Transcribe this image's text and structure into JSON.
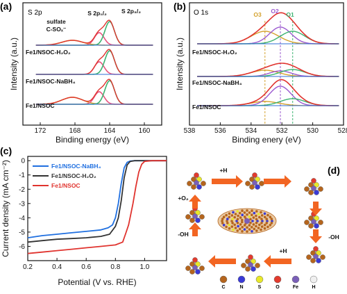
{
  "chart_data": [
    {
      "panel": "(a)",
      "type": "line",
      "title": "S 2p",
      "xlabel": "Binding energy (eV)",
      "ylabel": "Intensity (a.u.)",
      "xlim": [
        174,
        158
      ],
      "xticks": [
        172,
        168,
        164,
        160
      ],
      "annotations": [
        "sulfate",
        "C-SOₓ⁻",
        "S 2p₁/₂",
        "S 2p₃/₂"
      ],
      "series": [
        {
          "name": "Fe1/NSOC-H₂O₂",
          "peaks_eV": [
            168.3,
            165.2,
            164.0
          ]
        },
        {
          "name": "Fe1/NSOC-NaBH₄",
          "peaks_eV": [
            165.2,
            164.0
          ]
        },
        {
          "name": "Fe1/NSOC",
          "peaks_eV": [
            168.3,
            165.2,
            164.0
          ]
        }
      ],
      "colors": {
        "sulfate": "#d4a12c",
        "p12": "#e75480",
        "p32": "#3cb371",
        "envelope": "#e0332e",
        "raw": "#aaaaaa"
      }
    },
    {
      "panel": "(b)",
      "type": "line",
      "title": "O 1s",
      "xlabel": "Binding enery (eV)",
      "ylabel": "Intensity (a.u.)",
      "xlim": [
        538,
        528
      ],
      "xticks": [
        538,
        536,
        534,
        532,
        530,
        528
      ],
      "components": [
        "O3",
        "O2",
        "O1"
      ],
      "component_positions_eV": [
        533.1,
        532.1,
        531.3
      ],
      "series": [
        {
          "name": "Fe1/NSOC-H₂O₂"
        },
        {
          "name": "Fe1/NSOC-NaBH₄"
        },
        {
          "name": "Fe1/NSOC"
        }
      ],
      "colors": {
        "O3": "#d4a12c",
        "O2": "#9b59d0",
        "O1": "#3cb371",
        "envelope": "#e0332e",
        "baseline": "#2f6fd6"
      }
    },
    {
      "panel": "(c)",
      "type": "line",
      "xlabel": "Potential (V vs. RHE)",
      "ylabel": "Current density (mA cm⁻²)",
      "xlim": [
        0.2,
        1.15
      ],
      "ylim": [
        -7,
        0.3
      ],
      "xticks": [
        0.2,
        0.4,
        0.6,
        0.8,
        1.0
      ],
      "yticks": [
        0,
        -1,
        -2,
        -3,
        -4,
        -5,
        -6
      ],
      "series": [
        {
          "name": "Fe1/NSOC-NaBH₄",
          "color": "#1f6fe0",
          "x": [
            0.2,
            0.3,
            0.4,
            0.5,
            0.6,
            0.7,
            0.75,
            0.78,
            0.8,
            0.82,
            0.84,
            0.86,
            0.88,
            0.9,
            0.93,
            1.0,
            1.15
          ],
          "y": [
            -5.4,
            -5.25,
            -5.15,
            -5.05,
            -4.95,
            -4.85,
            -4.7,
            -4.5,
            -4.0,
            -3.0,
            -1.6,
            -0.5,
            -0.12,
            -0.03,
            0,
            0,
            0
          ]
        },
        {
          "name": "Fe1/NSOC-H₂O₂",
          "color": "#333333",
          "x": [
            0.2,
            0.3,
            0.4,
            0.5,
            0.6,
            0.7,
            0.76,
            0.8,
            0.82,
            0.84,
            0.86,
            0.88,
            0.9,
            0.93,
            1.0,
            1.15
          ],
          "y": [
            -5.7,
            -5.6,
            -5.5,
            -5.45,
            -5.4,
            -5.3,
            -5.15,
            -4.6,
            -4.0,
            -2.8,
            -1.2,
            -0.3,
            -0.06,
            0,
            0,
            0
          ]
        },
        {
          "name": "Fe1/NSOC",
          "color": "#e0332e",
          "x": [
            0.2,
            0.3,
            0.4,
            0.5,
            0.6,
            0.7,
            0.8,
            0.85,
            0.87,
            0.89,
            0.9,
            0.92,
            0.94,
            0.96,
            0.98,
            1.0,
            1.05,
            1.15
          ],
          "y": [
            -6.5,
            -6.4,
            -6.3,
            -6.2,
            -6.1,
            -6.0,
            -5.9,
            -5.7,
            -5.1,
            -4.5,
            -4.0,
            -3.0,
            -1.8,
            -0.8,
            -0.25,
            -0.05,
            0,
            0
          ]
        }
      ]
    }
  ],
  "panel_d": {
    "letter": "(d)",
    "arrow_labels": [
      "+H",
      "-OH",
      "+H",
      "-OH",
      "+O₂"
    ],
    "legend": [
      "C",
      "N",
      "S",
      "O",
      "Fe",
      "H"
    ],
    "legend_colors": [
      "#b5651d",
      "#3a3ad6",
      "#e8e82a",
      "#e33b2e",
      "#7a5fb8",
      "#f0f0f0"
    ],
    "arrow_color": "#f26522"
  }
}
